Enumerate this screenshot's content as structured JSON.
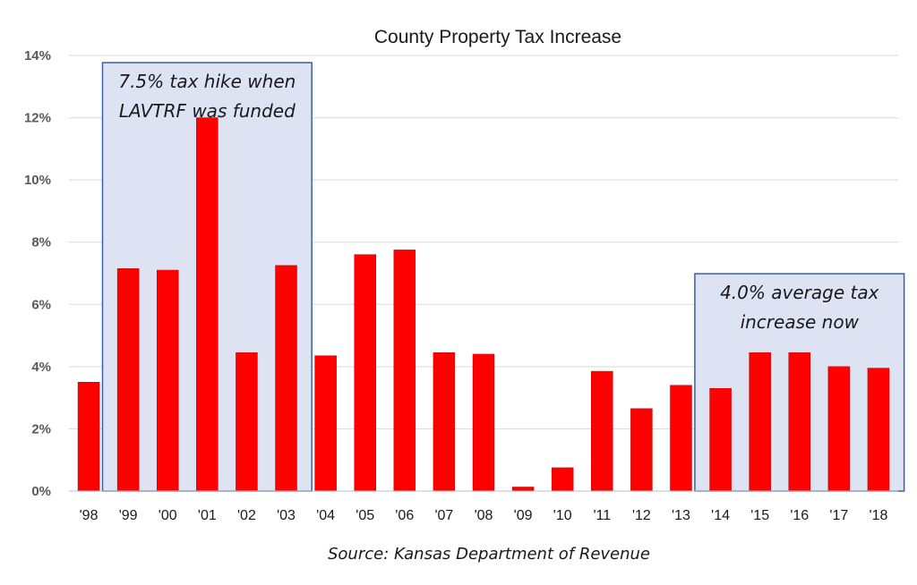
{
  "chart_data": {
    "type": "bar",
    "title": "County Property Tax Increase",
    "xlabel": "",
    "ylabel": "",
    "categories": [
      "'98",
      "'99",
      "'00",
      "'01",
      "'02",
      "'03",
      "'04",
      "'05",
      "'06",
      "'07",
      "'08",
      "'09",
      "'10",
      "'11",
      "'12",
      "'13",
      "'14",
      "'15",
      "'16",
      "'17",
      "'18"
    ],
    "values": [
      3.5,
      7.15,
      7.1,
      12.0,
      4.45,
      7.25,
      4.35,
      7.6,
      7.75,
      4.45,
      4.4,
      0.13,
      0.75,
      3.85,
      2.65,
      3.4,
      3.3,
      4.45,
      4.45,
      4.0,
      3.95
    ],
    "value_unit": "%",
    "ylim": [
      0,
      14
    ],
    "yticks": [
      "0%",
      "2%",
      "4%",
      "6%",
      "8%",
      "10%",
      "12%",
      "14%"
    ],
    "grid": true,
    "legend": "none",
    "bar_color": "#ff0000",
    "annotations": [
      {
        "lines": [
          "7.5% tax hike when",
          "LAVTRF was funded"
        ],
        "from": "'99",
        "to": "'03"
      },
      {
        "lines": [
          "4.0% average tax",
          "increase now"
        ],
        "from": "'14",
        "to": "'18"
      }
    ],
    "annotation_fill": "#dde3f3",
    "annotation_border": "#3b5fa8",
    "source": "Source: Kansas Department of Revenue"
  }
}
